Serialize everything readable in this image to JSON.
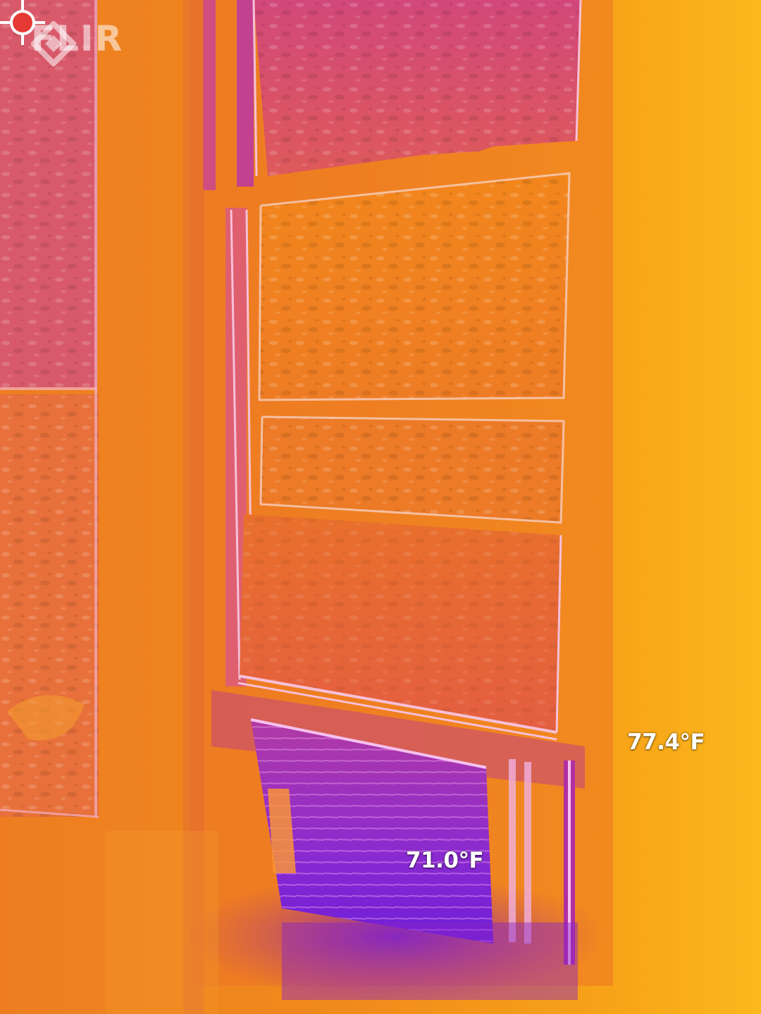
{
  "overlay": {
    "brand": "FLIR",
    "spot_cold": {
      "temperature": "71.0°F",
      "color": "#2b8fe8",
      "icon": "crosshair-cold-icon"
    },
    "spot_hot": {
      "temperature": "77.4°F",
      "color": "#e53935",
      "icon": "crosshair-hot-icon"
    }
  },
  "palette": {
    "hot": "#ffb820",
    "warm": "#f28c1c",
    "mid": "#e8602c",
    "cool": "#b8366e",
    "cold": "#7a22c8"
  }
}
